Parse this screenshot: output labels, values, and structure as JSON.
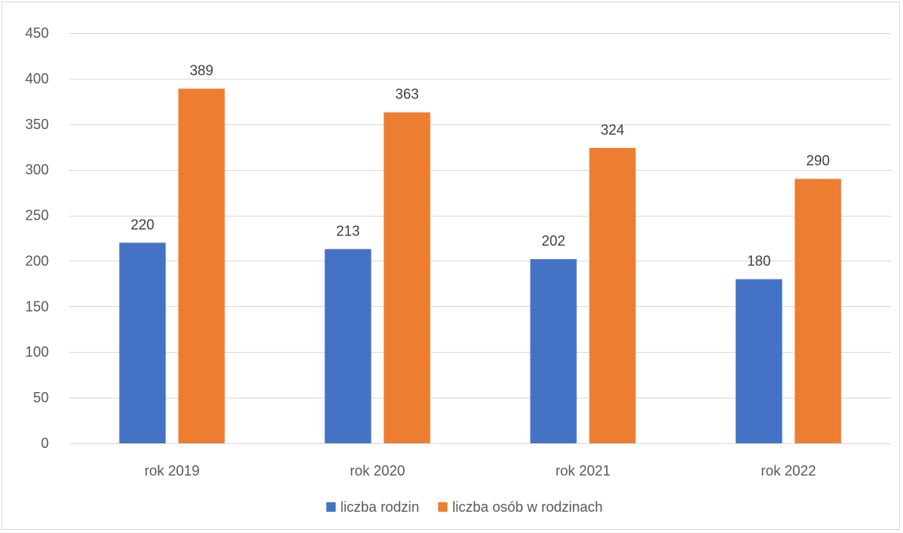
{
  "chart_data": {
    "type": "bar",
    "title": "",
    "xlabel": "",
    "ylabel": "",
    "categories": [
      "rok 2019",
      "rok 2020",
      "rok 2021",
      "rok 2022"
    ],
    "series": [
      {
        "name": "liczba rodzin",
        "color": "#4472C4",
        "values": [
          220,
          213,
          202,
          180
        ]
      },
      {
        "name": "liczba osób w rodzinach",
        "color": "#ED7D31",
        "values": [
          389,
          363,
          324,
          290
        ]
      }
    ],
    "ylim": [
      0,
      450
    ],
    "y_ticks": [
      0,
      50,
      100,
      150,
      200,
      250,
      300,
      350,
      400,
      450
    ],
    "grid": true,
    "legend_position": "bottom",
    "data_labels": true
  }
}
